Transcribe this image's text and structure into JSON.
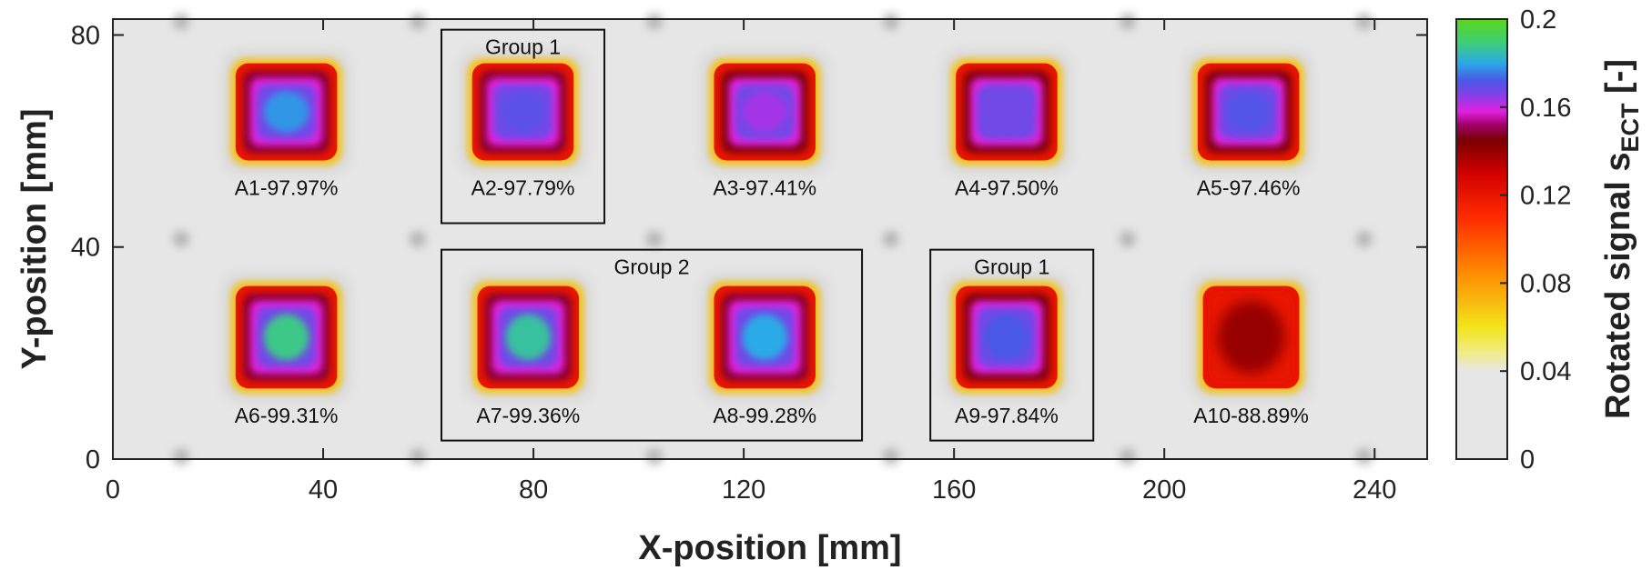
{
  "chart_data": {
    "type": "heatmap",
    "xlabel": "X-position [mm]",
    "ylabel": "Y-position [mm]",
    "xlim": [
      0,
      250
    ],
    "ylim": [
      0,
      83
    ],
    "xticks": [
      0,
      40,
      80,
      120,
      160,
      200,
      240
    ],
    "yticks": [
      0,
      40,
      80
    ],
    "colorbar": {
      "label_main": "Rotated signal s",
      "label_sub": "ECT",
      "label_suffix": " [-]",
      "range": [
        0,
        0.2
      ],
      "ticks": [
        0,
        0.04,
        0.08,
        0.12,
        0.16,
        0.2
      ],
      "tick_labels": [
        "0",
        "0.04",
        "0.08",
        "0.12",
        "0.16",
        "0.2"
      ],
      "stops": [
        {
          "v": 0.0,
          "color": "#e6e6e6"
        },
        {
          "v": 0.04,
          "color": "#e6e6e6"
        },
        {
          "v": 0.048,
          "color": "#f0ec8c"
        },
        {
          "v": 0.06,
          "color": "#f2e41a"
        },
        {
          "v": 0.085,
          "color": "#ff8a00"
        },
        {
          "v": 0.11,
          "color": "#ff2a00"
        },
        {
          "v": 0.13,
          "color": "#d10000"
        },
        {
          "v": 0.145,
          "color": "#7a0000"
        },
        {
          "v": 0.152,
          "color": "#a0006a"
        },
        {
          "v": 0.158,
          "color": "#e020e0"
        },
        {
          "v": 0.165,
          "color": "#8a3ee8"
        },
        {
          "v": 0.172,
          "color": "#4a58e6"
        },
        {
          "v": 0.18,
          "color": "#2aaae6"
        },
        {
          "v": 0.19,
          "color": "#40d070"
        },
        {
          "v": 0.2,
          "color": "#5ad61a"
        }
      ]
    },
    "spots": [
      {
        "id": "A1",
        "label": "A1-97.97%",
        "x": [
          23,
          43
        ],
        "y": [
          56,
          75
        ],
        "peak": 0.178,
        "shell": 0.148
      },
      {
        "id": "A2",
        "label": "A2-97.79%",
        "x": [
          68,
          88
        ],
        "y": [
          56,
          75
        ],
        "peak": 0.17,
        "shell": 0.148
      },
      {
        "id": "A3",
        "label": "A3-97.41%",
        "x": [
          114,
          134
        ],
        "y": [
          56,
          75
        ],
        "peak": 0.163,
        "shell": 0.146
      },
      {
        "id": "A4",
        "label": "A4-97.50%",
        "x": [
          160,
          180
        ],
        "y": [
          56,
          75
        ],
        "peak": 0.168,
        "shell": 0.146
      },
      {
        "id": "A5",
        "label": "A5-97.46%",
        "x": [
          206,
          226
        ],
        "y": [
          56,
          75
        ],
        "peak": 0.171,
        "shell": 0.146
      },
      {
        "id": "A6",
        "label": "A6-99.31%",
        "x": [
          23,
          43
        ],
        "y": [
          13,
          33
        ],
        "peak": 0.188,
        "shell": 0.148
      },
      {
        "id": "A7",
        "label": "A7-99.36%",
        "x": [
          69,
          89
        ],
        "y": [
          13,
          33
        ],
        "peak": 0.186,
        "shell": 0.148
      },
      {
        "id": "A8",
        "label": "A8-99.28%",
        "x": [
          114,
          134
        ],
        "y": [
          13,
          33
        ],
        "peak": 0.18,
        "shell": 0.148
      },
      {
        "id": "A9",
        "label": "A9-97.84%",
        "x": [
          160,
          180
        ],
        "y": [
          13,
          33
        ],
        "peak": 0.172,
        "shell": 0.146
      },
      {
        "id": "A10",
        "label": "A10-88.89%",
        "x": [
          207,
          226
        ],
        "y": [
          13,
          33
        ],
        "peak": 0.14,
        "shell": 0.12
      }
    ],
    "groups": [
      {
        "label": "Group 1",
        "x": [
          62.5,
          93.5
        ],
        "y": [
          44.5,
          81
        ]
      },
      {
        "label": "Group 2",
        "x": [
          62.5,
          142.5
        ],
        "y": [
          3.5,
          39.5
        ]
      },
      {
        "label": "Group 1",
        "x": [
          155.5,
          186.5
        ],
        "y": [
          3.5,
          39.5
        ]
      }
    ],
    "markers_x": [
      13,
      58,
      103,
      148,
      193,
      238
    ],
    "markers_y": [
      0.5,
      41.5,
      82.5
    ]
  }
}
